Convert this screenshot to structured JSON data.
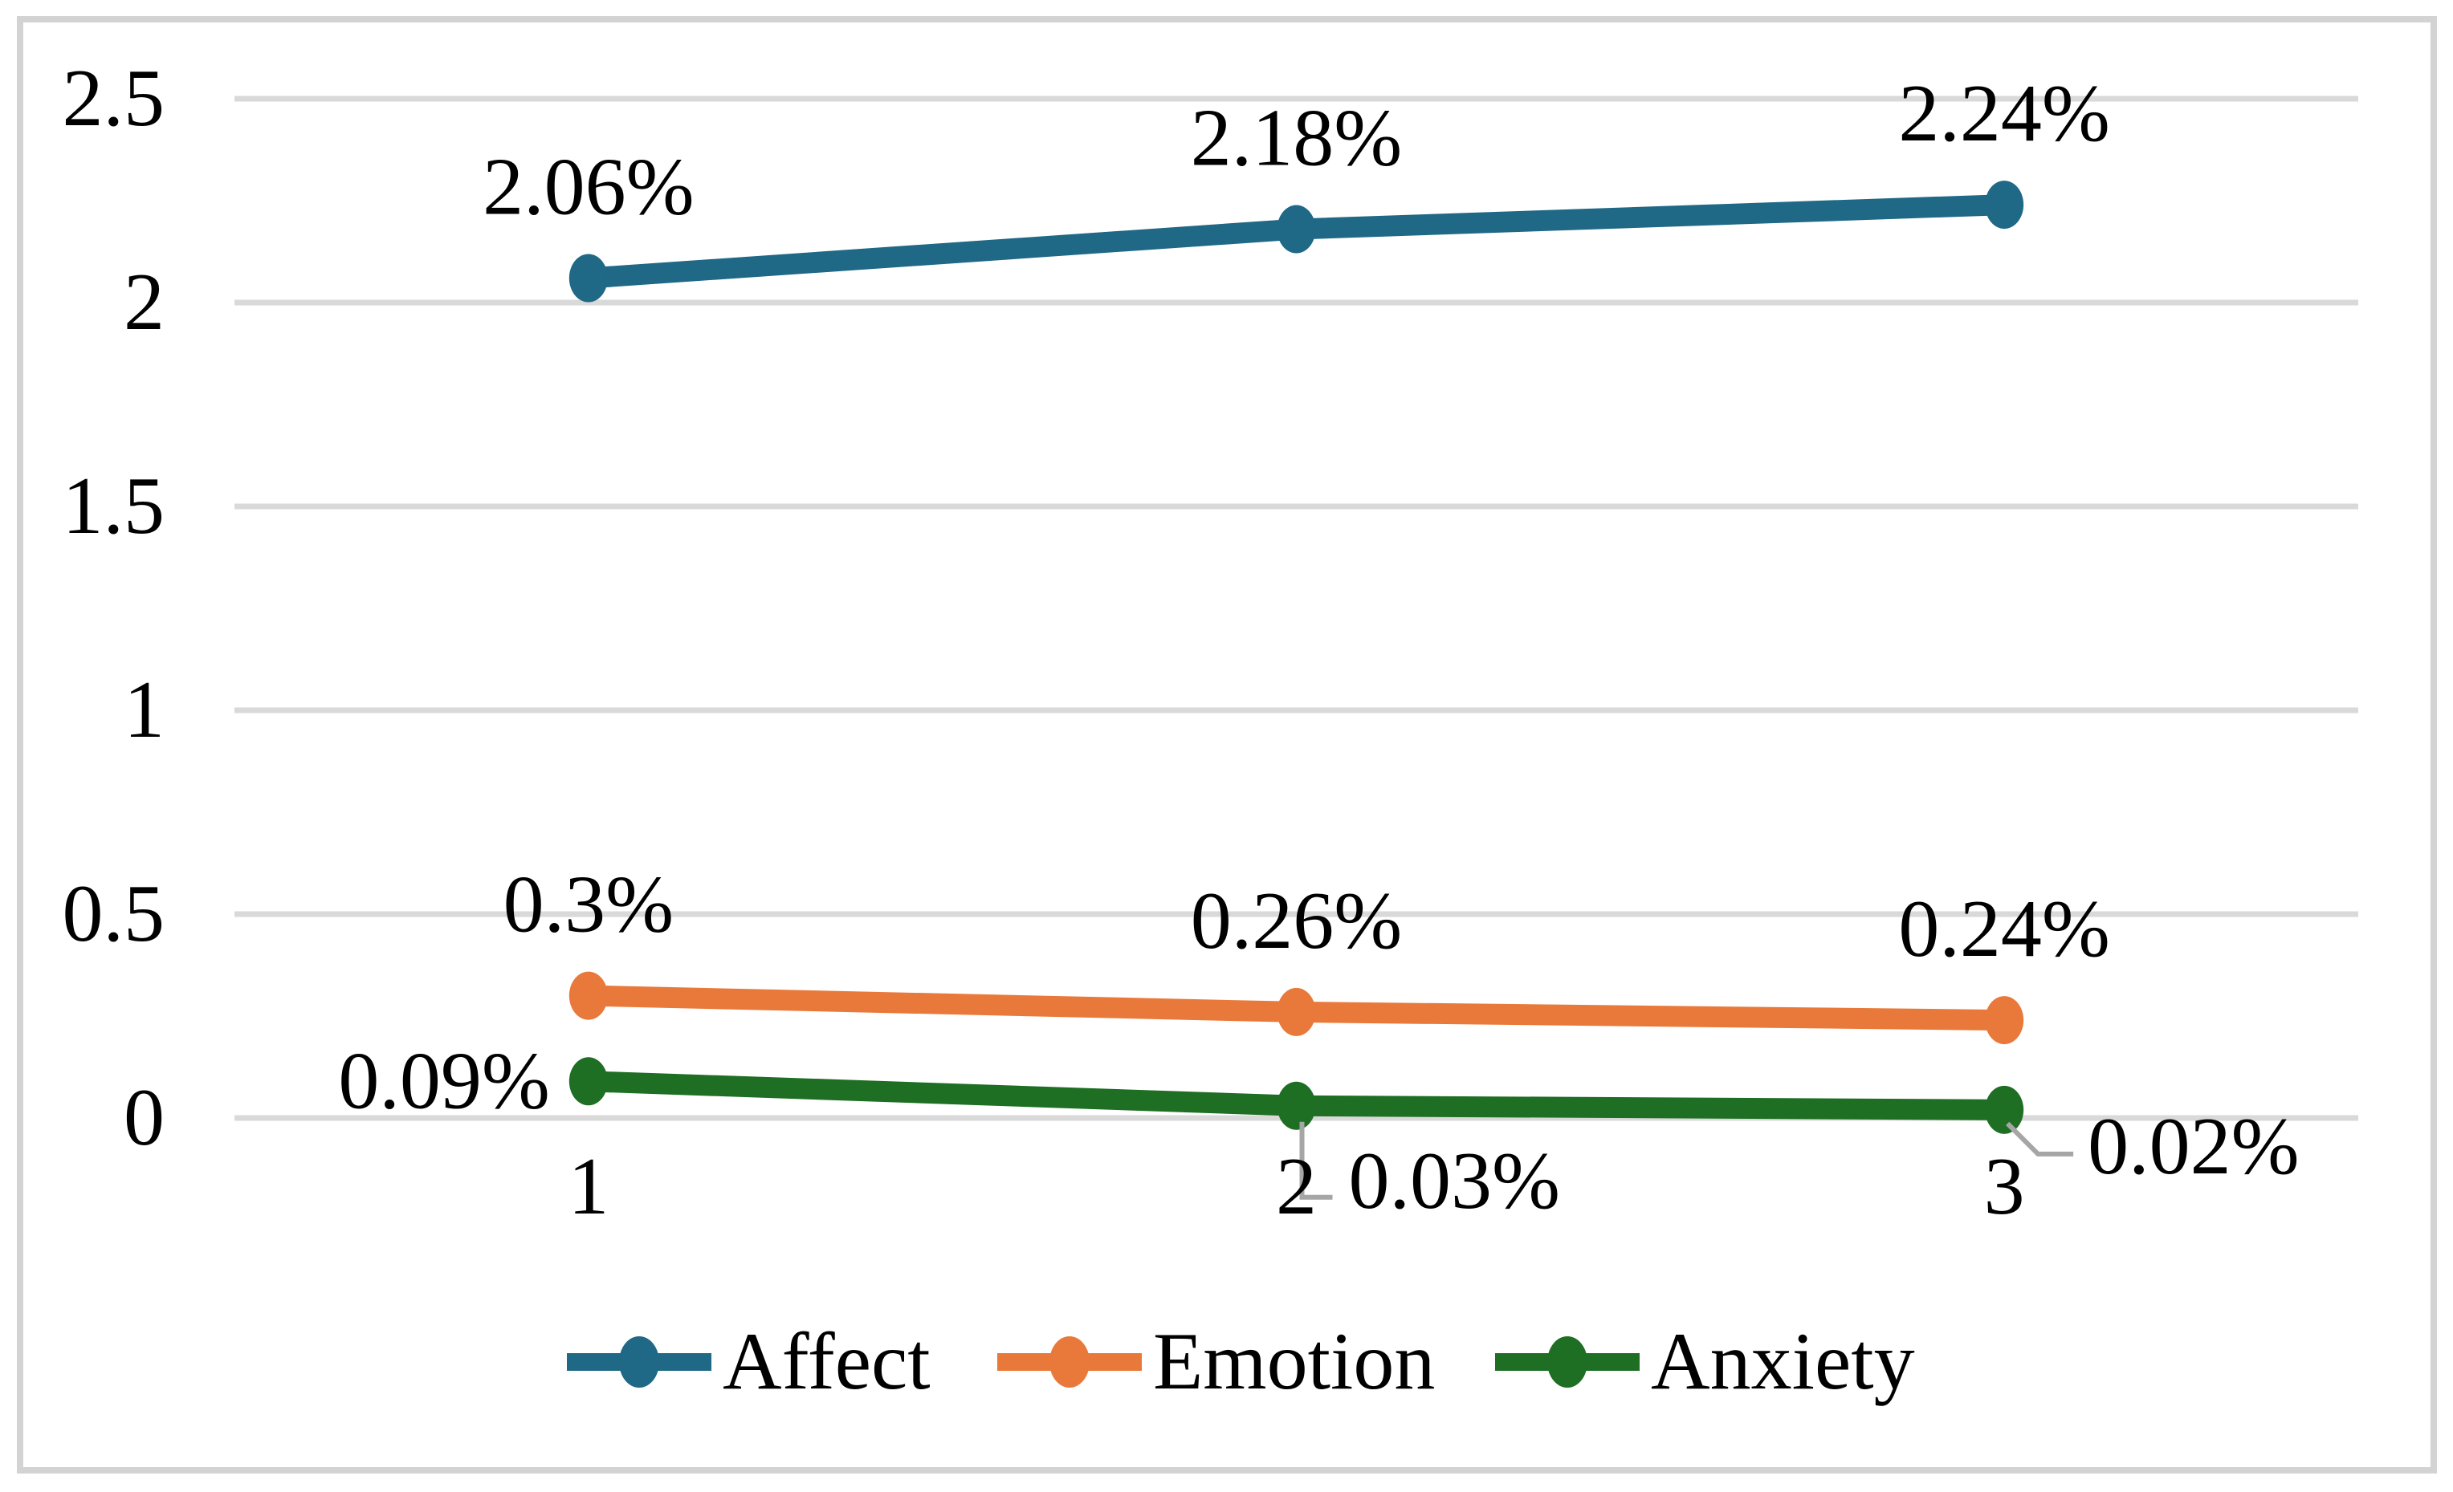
{
  "chart_data": {
    "type": "line",
    "x_categories": [
      "1",
      "2",
      "3"
    ],
    "y_axis": {
      "min": 0,
      "max": 2.5,
      "tick_step": 0.5,
      "tick_labels": [
        "0",
        "0.5",
        "1",
        "1.5",
        "2",
        "2.5"
      ]
    },
    "grid": true,
    "legend_position": "bottom",
    "series": [
      {
        "name": "Affect",
        "color": "#1F6886",
        "values": [
          2.06,
          2.18,
          2.24
        ],
        "point_labels": [
          {
            "text": "2.06%",
            "placement": "above"
          },
          {
            "text": "2.18%",
            "placement": "above"
          },
          {
            "text": "2.24%",
            "placement": "above"
          }
        ]
      },
      {
        "name": "Emotion",
        "color": "#E8793A",
        "values": [
          0.3,
          0.26,
          0.24
        ],
        "point_labels": [
          {
            "text": "0.3%",
            "placement": "above"
          },
          {
            "text": "0.26%",
            "placement": "above"
          },
          {
            "text": "0.24%",
            "placement": "above"
          }
        ]
      },
      {
        "name": "Anxiety",
        "color": "#1E6E23",
        "values": [
          0.09,
          0.03,
          0.02
        ],
        "point_labels": [
          {
            "text": "0.09%",
            "placement": "left"
          },
          {
            "text": "0.03%",
            "placement": "callout-below"
          },
          {
            "text": "0.02%",
            "placement": "callout-right"
          }
        ]
      }
    ],
    "colors": {
      "gridline": "#D9D9D9",
      "border": "#D3D3D3",
      "leader": "#A6A6A6",
      "label": "#000000",
      "background": "#FFFFFF"
    }
  },
  "legend": {
    "items": [
      {
        "label": "Affect",
        "color": "#1F6886"
      },
      {
        "label": "Emotion",
        "color": "#E8793A"
      },
      {
        "label": "Anxiety",
        "color": "#1E6E23"
      }
    ]
  }
}
